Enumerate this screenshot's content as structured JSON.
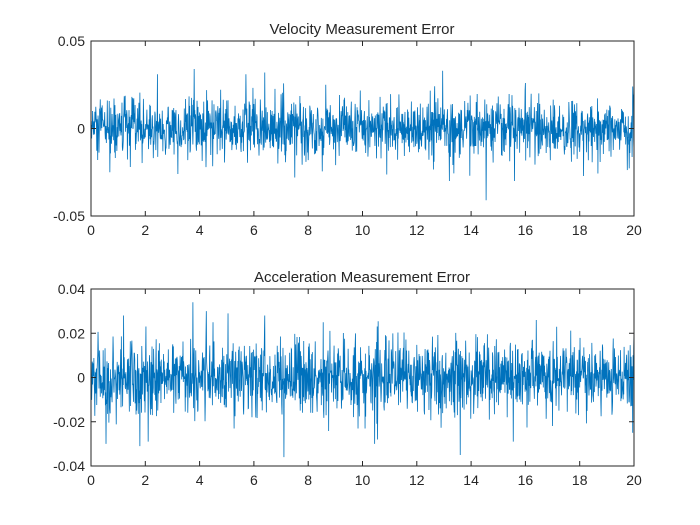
{
  "chart_data": [
    {
      "type": "line",
      "title": "Velocity Measurement Error",
      "xlabel": "",
      "ylabel": "",
      "xlim": [
        0,
        20
      ],
      "ylim": [
        -0.05,
        0.05
      ],
      "x_ticks": [
        "0",
        "2",
        "4",
        "6",
        "8",
        "10",
        "12",
        "14",
        "16",
        "18",
        "20"
      ],
      "y_ticks": [
        "-0.05",
        "0",
        "0.05"
      ],
      "x_tick_values": [
        0,
        2,
        4,
        6,
        8,
        10,
        12,
        14,
        16,
        18,
        20
      ],
      "y_tick_values": [
        -0.05,
        0,
        0.05
      ],
      "grid": false,
      "color": "#0072bd",
      "series": [
        {
          "x_start": 0,
          "x_end": 20,
          "noise_std": 0.0085,
          "notable_points": [
            {
              "x": 0.0,
              "y": 0.002
            },
            {
              "x": 0.25,
              "y": -0.018
            },
            {
              "x": 0.7,
              "y": -0.025
            },
            {
              "x": 1.45,
              "y": -0.022
            },
            {
              "x": 2.45,
              "y": 0.031
            },
            {
              "x": 3.2,
              "y": -0.026
            },
            {
              "x": 3.8,
              "y": 0.034
            },
            {
              "x": 5.7,
              "y": 0.031
            },
            {
              "x": 6.4,
              "y": 0.032
            },
            {
              "x": 7.5,
              "y": -0.028
            },
            {
              "x": 12.95,
              "y": 0.033
            },
            {
              "x": 13.2,
              "y": -0.03
            },
            {
              "x": 13.95,
              "y": -0.027
            },
            {
              "x": 14.55,
              "y": -0.041
            },
            {
              "x": 15.6,
              "y": -0.03
            },
            {
              "x": 16.0,
              "y": 0.026
            },
            {
              "x": 19.95,
              "y": 0.024
            },
            {
              "x": 20.0,
              "y": -0.013
            }
          ]
        }
      ]
    },
    {
      "type": "line",
      "title": "Acceleration Measurement Error",
      "xlabel": "",
      "ylabel": "",
      "xlim": [
        0,
        20
      ],
      "ylim": [
        -0.04,
        0.04
      ],
      "x_ticks": [
        "0",
        "2",
        "4",
        "6",
        "8",
        "10",
        "12",
        "14",
        "16",
        "18",
        "20"
      ],
      "y_ticks": [
        "-0.04",
        "-0.02",
        "0",
        "0.02",
        "0.04"
      ],
      "x_tick_values": [
        0,
        2,
        4,
        6,
        8,
        10,
        12,
        14,
        16,
        18,
        20
      ],
      "y_tick_values": [
        -0.04,
        -0.02,
        0,
        0.02,
        0.04
      ],
      "grid": false,
      "color": "#0072bd",
      "series": [
        {
          "x_start": 0,
          "x_end": 20,
          "noise_std": 0.0085,
          "notable_points": [
            {
              "x": 0.0,
              "y": 0.025
            },
            {
              "x": 0.55,
              "y": -0.03
            },
            {
              "x": 1.2,
              "y": 0.028
            },
            {
              "x": 1.8,
              "y": -0.031
            },
            {
              "x": 2.1,
              "y": -0.029
            },
            {
              "x": 3.75,
              "y": 0.034
            },
            {
              "x": 4.25,
              "y": 0.03
            },
            {
              "x": 5.05,
              "y": 0.029
            },
            {
              "x": 6.4,
              "y": 0.028
            },
            {
              "x": 7.1,
              "y": -0.036
            },
            {
              "x": 8.55,
              "y": 0.025
            },
            {
              "x": 10.45,
              "y": -0.03
            },
            {
              "x": 10.55,
              "y": -0.028
            },
            {
              "x": 13.6,
              "y": -0.035
            },
            {
              "x": 15.55,
              "y": -0.029
            },
            {
              "x": 16.4,
              "y": 0.026
            },
            {
              "x": 19.95,
              "y": -0.025
            },
            {
              "x": 20.0,
              "y": 0.021
            }
          ]
        }
      ]
    }
  ]
}
